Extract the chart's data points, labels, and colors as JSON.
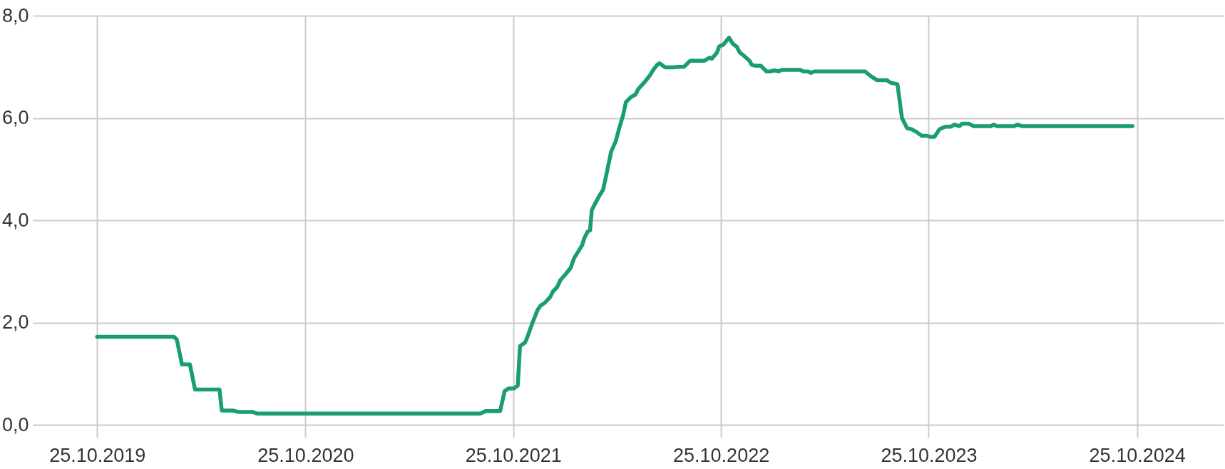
{
  "chart_data": {
    "type": "line",
    "x": [
      "2019-10-25",
      "2020-03-08",
      "2020-03-13",
      "2020-03-22",
      "2020-04-05",
      "2020-04-14",
      "2020-05-27",
      "2020-05-31",
      "2020-06-19",
      "2020-06-30",
      "2020-07-24",
      "2020-08-01",
      "2021-08-28",
      "2021-09-07",
      "2021-10-02",
      "2021-10-10",
      "2021-10-17",
      "2021-10-26",
      "2021-11-02",
      "2021-11-06",
      "2021-11-15",
      "2021-11-20",
      "2021-11-28",
      "2021-12-07",
      "2021-12-12",
      "2021-12-20",
      "2021-12-29",
      "2022-01-03",
      "2022-01-10",
      "2022-01-16",
      "2022-01-24",
      "2022-02-03",
      "2022-02-09",
      "2022-02-18",
      "2022-02-23",
      "2022-02-27",
      "2022-03-05",
      "2022-03-09",
      "2022-03-12",
      "2022-03-19",
      "2022-03-26",
      "2022-04-01",
      "2022-04-08",
      "2022-04-15",
      "2022-04-23",
      "2022-04-30",
      "2022-05-06",
      "2022-05-11",
      "2022-05-20",
      "2022-05-28",
      "2022-06-02",
      "2022-06-12",
      "2022-06-22",
      "2022-06-28",
      "2022-07-05",
      "2022-07-09",
      "2022-07-19",
      "2022-08-02",
      "2022-08-11",
      "2022-08-21",
      "2022-09-01",
      "2022-09-26",
      "2022-10-05",
      "2022-10-09",
      "2022-10-18",
      "2022-10-22",
      "2022-10-29",
      "2022-11-08",
      "2022-11-15",
      "2022-11-22",
      "2022-11-27",
      "2022-12-05",
      "2022-12-14",
      "2022-12-18",
      "2022-12-25",
      "2023-01-03",
      "2023-01-13",
      "2023-01-20",
      "2023-01-27",
      "2023-02-03",
      "2023-02-09",
      "2023-03-13",
      "2023-03-19",
      "2023-03-27",
      "2023-04-01",
      "2023-04-07",
      "2023-07-05",
      "2023-07-15",
      "2023-07-26",
      "2023-08-12",
      "2023-08-19",
      "2023-08-31",
      "2023-09-08",
      "2023-09-17",
      "2023-09-25",
      "2023-10-03",
      "2023-10-13",
      "2023-10-22",
      "2023-10-28",
      "2023-11-04",
      "2023-11-13",
      "2023-11-23",
      "2023-12-03",
      "2023-12-09",
      "2023-12-18",
      "2023-12-23",
      "2024-01-03",
      "2024-01-12",
      "2024-02-11",
      "2024-02-16",
      "2024-02-22",
      "2024-03-23",
      "2024-03-29",
      "2024-04-06",
      "2024-10-17"
    ],
    "series": [
      {
        "color": "#1a9e6e",
        "values": [
          1.72,
          1.72,
          1.67,
          1.18,
          1.18,
          0.69,
          0.69,
          0.28,
          0.28,
          0.25,
          0.25,
          0.22,
          0.22,
          0.27,
          0.27,
          0.66,
          0.71,
          0.71,
          0.77,
          1.54,
          1.61,
          1.75,
          2.0,
          2.25,
          2.33,
          2.39,
          2.5,
          2.61,
          2.69,
          2.83,
          2.93,
          3.07,
          3.26,
          3.42,
          3.51,
          3.65,
          3.78,
          3.8,
          4.2,
          4.35,
          4.49,
          4.6,
          4.96,
          5.34,
          5.54,
          5.83,
          6.05,
          6.31,
          6.41,
          6.46,
          6.57,
          6.69,
          6.83,
          6.94,
          7.04,
          7.07,
          6.99,
          6.99,
          7.0,
          7.0,
          7.12,
          7.12,
          7.18,
          7.16,
          7.28,
          7.4,
          7.43,
          7.57,
          7.45,
          7.39,
          7.28,
          7.21,
          7.12,
          7.04,
          7.02,
          7.02,
          6.91,
          6.91,
          6.93,
          6.91,
          6.94,
          6.94,
          6.91,
          6.91,
          6.88,
          6.91,
          6.91,
          6.82,
          6.74,
          6.74,
          6.69,
          6.66,
          6.0,
          5.8,
          5.78,
          5.73,
          5.65,
          5.65,
          5.63,
          5.63,
          5.78,
          5.83,
          5.83,
          5.87,
          5.84,
          5.89,
          5.89,
          5.84,
          5.84,
          5.87,
          5.84,
          5.84,
          5.87,
          5.84,
          5.84
        ]
      }
    ],
    "xlim": [
      "2019-07-04",
      "2025-03-26"
    ],
    "xticks": [
      {
        "value": "2019-10-25",
        "label": "25.10.2019"
      },
      {
        "value": "2020-10-25",
        "label": "25.10.2020"
      },
      {
        "value": "2021-10-25",
        "label": "25.10.2021"
      },
      {
        "value": "2022-10-25",
        "label": "25.10.2022"
      },
      {
        "value": "2023-10-25",
        "label": "25.10.2023"
      },
      {
        "value": "2024-10-25",
        "label": "25.10.2024"
      }
    ],
    "ylim": [
      0,
      8
    ],
    "yticks": [
      {
        "value": 0,
        "label": "0,0"
      },
      {
        "value": 2,
        "label": "2,0"
      },
      {
        "value": 4,
        "label": "4,0"
      },
      {
        "value": 6,
        "label": "6,0"
      },
      {
        "value": 8,
        "label": "8,0"
      }
    ],
    "grid": true,
    "line_style": "solid",
    "marker": "none"
  }
}
